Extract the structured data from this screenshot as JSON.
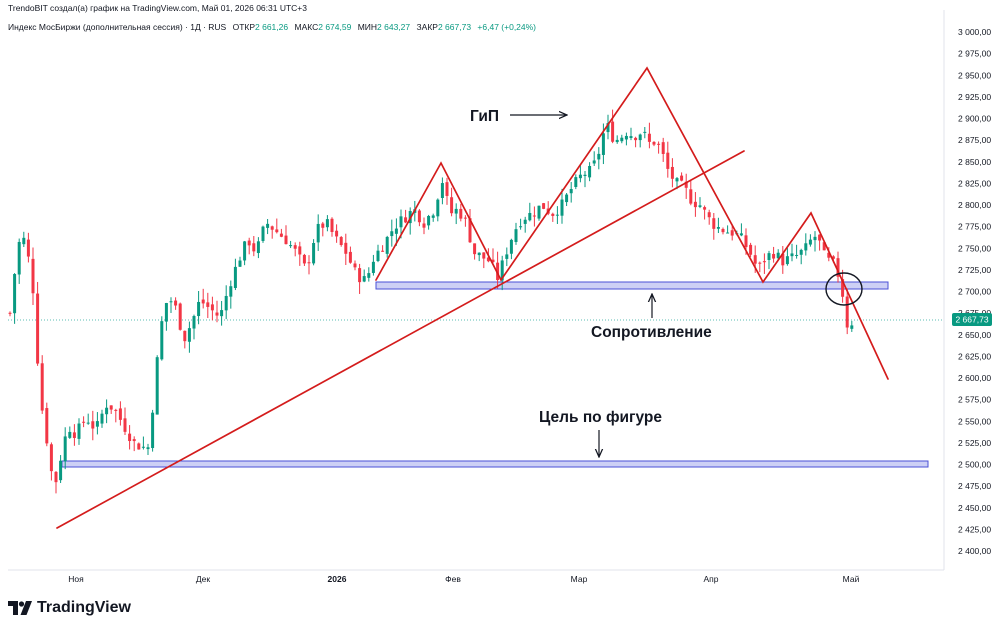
{
  "header": {
    "author_line": "TrendoBIT создал(а) график на TradingView.com, Май 01, 2026 06:31 UTC+3",
    "symbol": "Индекс МосБиржи (дополнительная сессия) · 1Д · RUS",
    "open_label": "ОТКР",
    "open_value": "2 661,26",
    "high_label": "МАКС",
    "high_value": "2 674,59",
    "low_label": "МИН",
    "low_value": "2 643,27",
    "close_label": "ЗАКР",
    "close_value": "2 667,73",
    "change": "+6,47 (+0,24%)"
  },
  "brand": {
    "logo_text": "TradingView"
  },
  "annotations": {
    "hns": "ГиП",
    "resistance": "Сопротивление",
    "target": "Цель по фигуре"
  },
  "price_tag": "2 667,73",
  "colors": {
    "up": "#089981",
    "down": "#f23645",
    "trend": "#d41c1c",
    "zone_fill": "#cdd0f5",
    "zone_border": "#4a50d6",
    "text": "#131722"
  },
  "chart_data": {
    "type": "candlestick",
    "instrument": "Индекс МосБиржи (дополнительная сессия)",
    "timeframe": "1Д",
    "y_ticks": [
      2400,
      2425,
      2450,
      2475,
      2500,
      2525,
      2550,
      2575,
      2600,
      2625,
      2650,
      2675,
      2700,
      2725,
      2750,
      2775,
      2800,
      2825,
      2850,
      2875,
      2900,
      2925,
      2950,
      2975,
      3000
    ],
    "y_tick_labels": [
      "2 400,00",
      "2 425,00",
      "2 450,00",
      "2 475,00",
      "2 500,00",
      "2 525,00",
      "2 550,00",
      "2 575,00",
      "2 600,00",
      "2 625,00",
      "2 650,00",
      "2 675,00",
      "2 700,00",
      "2 725,00",
      "2 750,00",
      "2 775,00",
      "2 800,00",
      "2 825,00",
      "2 850,00",
      "2 875,00",
      "2 900,00",
      "2 925,00",
      "2 950,00",
      "2 975,00",
      "3 000,00"
    ],
    "ylim": [
      2380,
      3010
    ],
    "x_labels": [
      "Ноя",
      "Дек",
      "2026",
      "Фев",
      "Мар",
      "Апр",
      "Май"
    ],
    "close_price": 2667.73,
    "zones": [
      {
        "name": "Сопротивление",
        "low": 2702,
        "high": 2710
      },
      {
        "name": "Цель по фигуре",
        "low": 2497,
        "high": 2503
      }
    ],
    "shoulders_peaks": [
      2848,
      2958,
      2790
    ],
    "neckline_level": 2705
  }
}
